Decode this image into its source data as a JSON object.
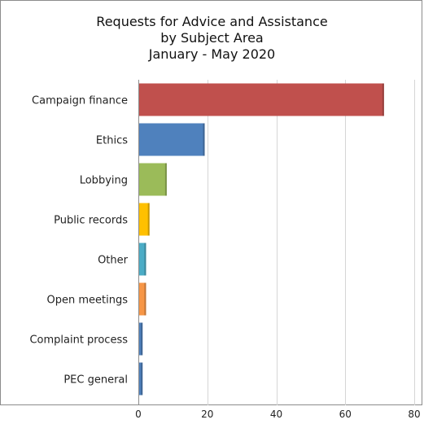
{
  "chart_data": {
    "type": "bar",
    "orientation": "horizontal",
    "title": [
      "Requests for Advice and Assistance",
      "by Subject Area",
      "January - May 2020"
    ],
    "xlabel": "",
    "ylabel": "",
    "categories": [
      "Campaign finance",
      "Ethics",
      "Lobbying",
      "Public records",
      "Other",
      "Open meetings",
      "Complaint process",
      "PEC general"
    ],
    "values": [
      71,
      19,
      8,
      3,
      2,
      2,
      1,
      1
    ],
    "colors": [
      "#c0504d",
      "#4f81bd",
      "#9bbb59",
      "#ffc000",
      "#4bacc6",
      "#f79646",
      "#4f81bd",
      "#4f81bd"
    ],
    "xlim": [
      0,
      80
    ],
    "xticks": [
      0,
      20,
      40,
      60,
      80
    ],
    "grid": true,
    "legend": "none"
  }
}
